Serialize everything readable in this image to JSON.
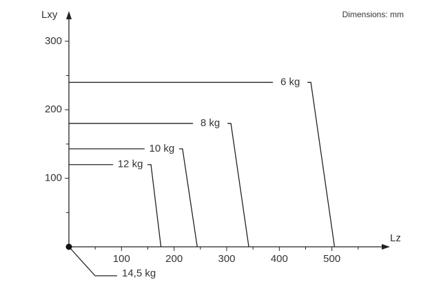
{
  "chart_data": {
    "type": "line",
    "annotation": "Dimensions: mm",
    "x_label": "Lz",
    "y_label": "Lxy",
    "origin_label": "14,5 kg",
    "xlim": [
      0,
      600
    ],
    "ylim": [
      0,
      336
    ],
    "xticks": [
      100,
      200,
      300,
      400,
      500
    ],
    "yticks": [
      100,
      200,
      300
    ],
    "xminorticks": [
      50,
      150,
      250,
      350,
      450,
      550
    ],
    "yminorticks": [
      50,
      150,
      250
    ],
    "color": "#222",
    "series": [
      {
        "name": "6 kg",
        "x": [
          0,
          460,
          505
        ],
        "values": [
          240,
          240,
          0
        ]
      },
      {
        "name": "8 kg",
        "x": [
          0,
          308,
          342
        ],
        "values": [
          180,
          180,
          0
        ]
      },
      {
        "name": "10 kg",
        "x": [
          0,
          216,
          244
        ],
        "values": [
          143,
          143,
          0
        ]
      },
      {
        "name": "12 kg",
        "x": [
          0,
          156,
          175
        ],
        "values": [
          120,
          120,
          0
        ]
      }
    ]
  }
}
